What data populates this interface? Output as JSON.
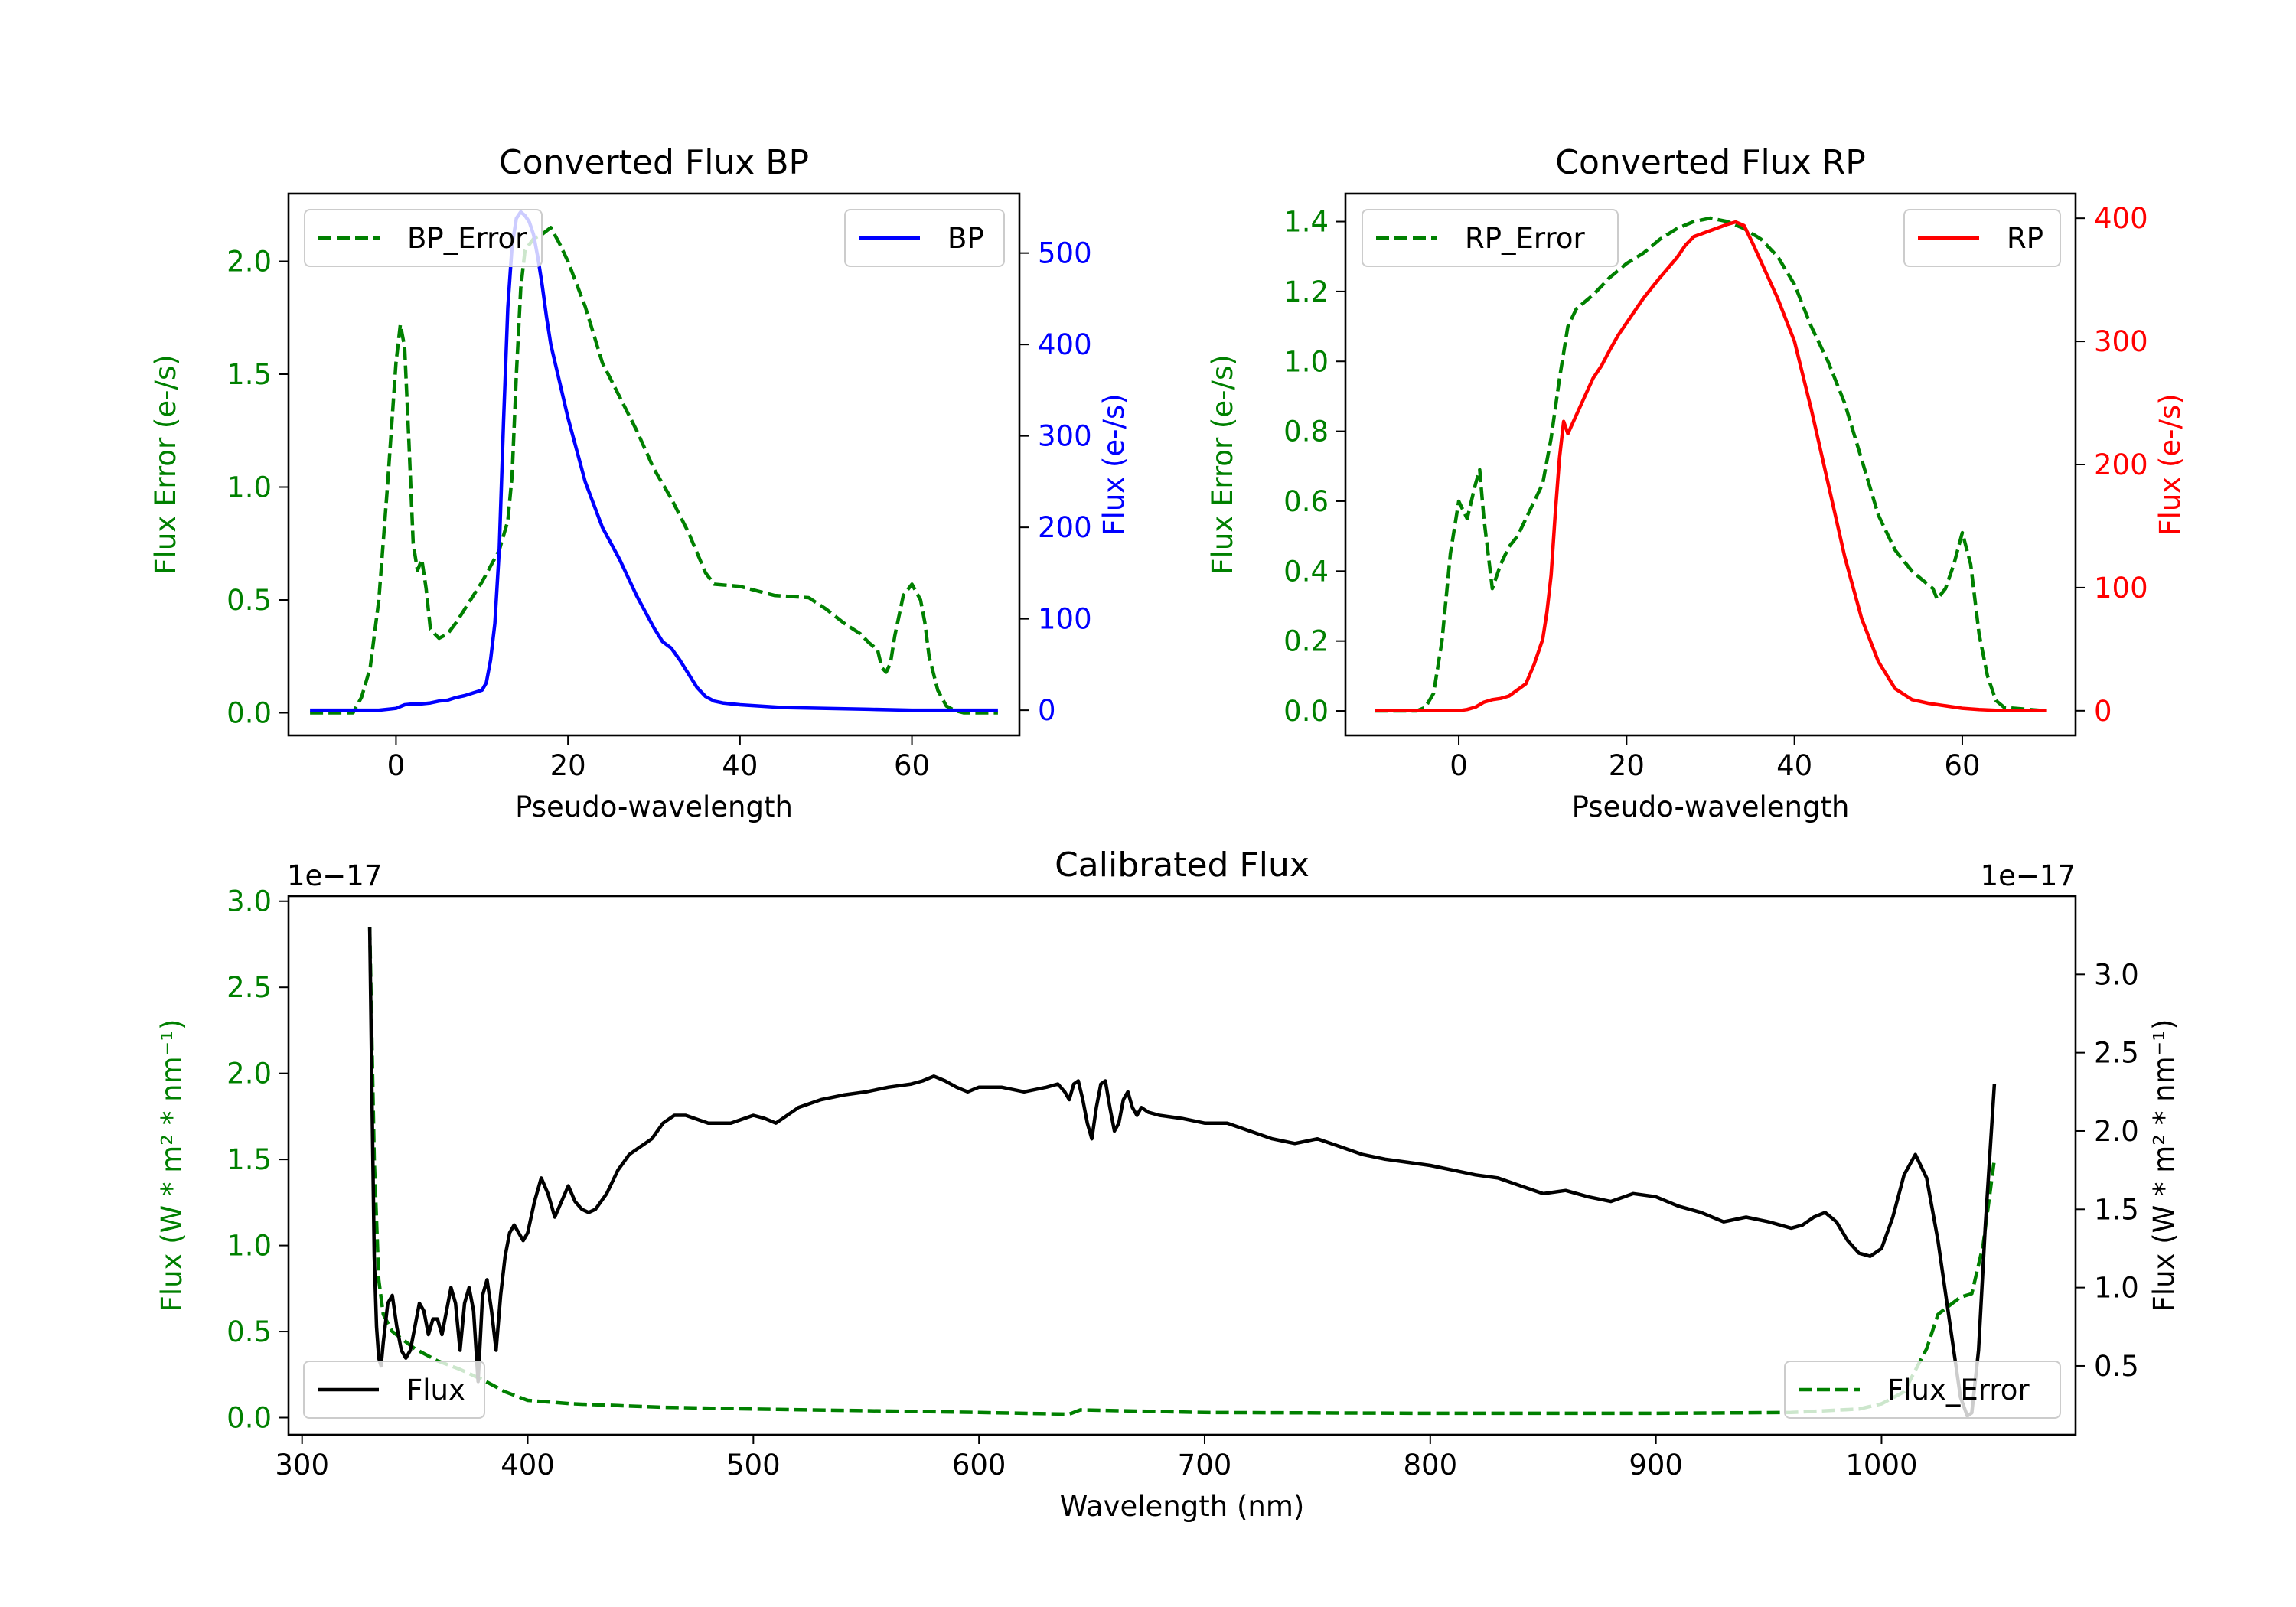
{
  "chart_data": [
    {
      "type": "line",
      "title": "Converted Flux BP",
      "xlabel": "Pseudo-wavelength",
      "ylabel_left": "Flux Error (e-/s)",
      "ylabel_right": "Flux (e-/s)",
      "xlim": [
        -12.5,
        72.5
      ],
      "ylim_left": [
        -0.1,
        2.3
      ],
      "ylim_right": [
        -27.5,
        565
      ],
      "xticks": [
        0,
        20,
        40,
        60
      ],
      "yticks_left": [
        0.0,
        0.5,
        1.0,
        1.5,
        2.0
      ],
      "yticks_right": [
        0,
        100,
        200,
        300,
        400,
        500
      ],
      "legend": [
        {
          "label": "BP_Error",
          "style": "dashed",
          "color": "#008000",
          "placement": "upper left"
        },
        {
          "label": "BP",
          "style": "solid",
          "color": "#0000ff",
          "placement": "upper right"
        }
      ],
      "series": [
        {
          "name": "BP_Error",
          "axis": "left",
          "style": "dashed",
          "color": "#008000",
          "x": [
            -10,
            -5,
            -4,
            -3,
            -2,
            -1,
            0,
            0.5,
            1,
            1.5,
            2,
            2.5,
            3,
            3.5,
            4,
            5,
            6,
            7,
            8,
            9,
            10,
            11,
            12,
            13,
            13.5,
            14,
            14.5,
            15,
            16,
            17,
            18,
            19,
            20,
            22,
            24,
            26,
            28,
            30,
            32,
            34,
            36,
            37,
            40,
            44,
            48,
            50,
            52,
            54,
            55,
            56,
            56.5,
            57,
            57.5,
            58,
            59,
            60,
            61,
            61.5,
            62,
            63,
            64,
            65,
            66,
            70
          ],
          "values": [
            0.0,
            0.0,
            0.07,
            0.2,
            0.5,
            1.0,
            1.55,
            1.72,
            1.62,
            1.2,
            0.75,
            0.63,
            0.68,
            0.55,
            0.37,
            0.33,
            0.35,
            0.4,
            0.46,
            0.52,
            0.58,
            0.65,
            0.72,
            0.85,
            1.05,
            1.5,
            1.88,
            2.05,
            2.1,
            2.12,
            2.15,
            2.08,
            2.0,
            1.8,
            1.55,
            1.4,
            1.25,
            1.08,
            0.95,
            0.8,
            0.62,
            0.57,
            0.56,
            0.52,
            0.51,
            0.46,
            0.4,
            0.35,
            0.31,
            0.28,
            0.2,
            0.18,
            0.22,
            0.34,
            0.52,
            0.57,
            0.5,
            0.4,
            0.25,
            0.1,
            0.03,
            0.01,
            0.0,
            0.0
          ]
        },
        {
          "name": "BP",
          "axis": "right",
          "style": "solid",
          "color": "#0000ff",
          "x": [
            -10,
            -2,
            0,
            1,
            2,
            3,
            4,
            5,
            6,
            7,
            8,
            9,
            10,
            10.5,
            11,
            11.5,
            12,
            12.5,
            13,
            13.5,
            14,
            14.5,
            15,
            15.5,
            16,
            16.5,
            17,
            17.5,
            18,
            19,
            20,
            22,
            24,
            26,
            28,
            30,
            31,
            32,
            33,
            34,
            35,
            36,
            37,
            38,
            40,
            45,
            50,
            55,
            60,
            65,
            70
          ],
          "values": [
            0,
            0,
            2,
            6,
            7,
            7,
            8,
            10,
            11,
            14,
            16,
            19,
            22,
            30,
            55,
            95,
            175,
            315,
            440,
            508,
            538,
            545,
            541,
            534,
            520,
            495,
            465,
            430,
            400,
            360,
            320,
            250,
            200,
            165,
            125,
            90,
            75,
            68,
            55,
            40,
            25,
            15,
            10,
            8,
            6,
            3,
            2,
            1,
            0,
            0,
            0
          ]
        }
      ]
    },
    {
      "type": "line",
      "title": "Converted Flux RP",
      "xlabel": "Pseudo-wavelength",
      "ylabel_left": "Flux Error (e-/s)",
      "ylabel_right": "Flux (e-/s)",
      "xlim": [
        -13.5,
        73.5
      ],
      "ylim_left": [
        -0.07,
        1.48
      ],
      "ylim_right": [
        -20,
        420
      ],
      "xticks": [
        0,
        20,
        40,
        60
      ],
      "yticks_left": [
        0.0,
        0.2,
        0.4,
        0.6,
        0.8,
        1.0,
        1.2,
        1.4
      ],
      "yticks_right": [
        0,
        100,
        200,
        300,
        400
      ],
      "legend": [
        {
          "label": "RP_Error",
          "style": "dashed",
          "color": "#008000",
          "placement": "upper left"
        },
        {
          "label": "RP",
          "style": "solid",
          "color": "#ff0000",
          "placement": "upper right"
        }
      ],
      "series": [
        {
          "name": "RP_Error",
          "axis": "left",
          "style": "dashed",
          "color": "#008000",
          "x": [
            -10,
            -5,
            -4,
            -3,
            -2,
            -1,
            0,
            1,
            2,
            2.5,
            3,
            3.5,
            4,
            5,
            6,
            7,
            8,
            9,
            10,
            11,
            12,
            13,
            14,
            16,
            18,
            20,
            22,
            24,
            26,
            28,
            30,
            32,
            34,
            36,
            38,
            40,
            42,
            44,
            46,
            48,
            50,
            52,
            54,
            55,
            56,
            56.5,
            57,
            58,
            59,
            60,
            61,
            62,
            63,
            64,
            65,
            70
          ],
          "values": [
            0.0,
            0.0,
            0.01,
            0.05,
            0.2,
            0.45,
            0.6,
            0.55,
            0.65,
            0.69,
            0.55,
            0.45,
            0.35,
            0.42,
            0.47,
            0.5,
            0.55,
            0.6,
            0.65,
            0.78,
            0.95,
            1.1,
            1.15,
            1.19,
            1.24,
            1.28,
            1.31,
            1.35,
            1.38,
            1.4,
            1.41,
            1.4,
            1.38,
            1.35,
            1.3,
            1.22,
            1.1,
            1.0,
            0.88,
            0.72,
            0.56,
            0.46,
            0.4,
            0.38,
            0.36,
            0.35,
            0.32,
            0.35,
            0.42,
            0.51,
            0.42,
            0.22,
            0.1,
            0.03,
            0.01,
            0.0
          ]
        },
        {
          "name": "RP",
          "axis": "right",
          "style": "solid",
          "color": "#ff0000",
          "x": [
            -10,
            -2,
            0,
            1,
            2,
            3,
            4,
            5,
            6,
            7,
            8,
            9,
            10,
            10.5,
            11,
            11.5,
            12,
            12.5,
            13,
            14,
            15,
            16,
            17,
            18,
            19,
            20,
            22,
            24,
            26,
            27,
            28,
            30,
            32,
            33,
            34,
            35,
            36,
            38,
            40,
            42,
            44,
            46,
            48,
            50,
            52,
            54,
            56,
            58,
            60,
            62,
            65,
            70
          ],
          "values": [
            0,
            0,
            0,
            1,
            3,
            7,
            9,
            10,
            12,
            17,
            22,
            38,
            58,
            80,
            110,
            160,
            205,
            235,
            225,
            240,
            255,
            270,
            280,
            293,
            305,
            315,
            335,
            352,
            368,
            378,
            385,
            390,
            395,
            397,
            394,
            380,
            365,
            335,
            300,
            245,
            185,
            125,
            75,
            40,
            18,
            9,
            6,
            4,
            2,
            1,
            0,
            0
          ]
        }
      ]
    },
    {
      "type": "line",
      "title": "Calibrated Flux",
      "xlabel": "Wavelength (nm)",
      "ylabel_left": "Flux (W * m² * nm⁻¹)",
      "ylabel_right": "Flux (W * m² * nm⁻¹)",
      "offset_left": "1e−17",
      "offset_right": "1e−17",
      "xlim": [
        294,
        1086
      ],
      "ylim_left": [
        -0.1,
        3.03
      ],
      "ylim_right": [
        0.06,
        3.5
      ],
      "xticks": [
        300,
        400,
        500,
        600,
        700,
        800,
        900,
        1000
      ],
      "yticks_left": [
        0.0,
        0.5,
        1.0,
        1.5,
        2.0,
        2.5,
        3.0
      ],
      "yticks_right": [
        0.5,
        1.0,
        1.5,
        2.0,
        2.5,
        3.0
      ],
      "legend": [
        {
          "label": "Flux",
          "style": "solid",
          "color": "#000000",
          "placement": "lower left"
        },
        {
          "label": "Flux_Error",
          "style": "dashed",
          "color": "#008000",
          "placement": "lower right"
        }
      ],
      "series": [
        {
          "name": "Flux_Error",
          "axis": "left",
          "style": "dashed",
          "color": "#008000",
          "x": [
            330,
            332,
            334,
            336,
            340,
            345,
            350,
            360,
            370,
            380,
            390,
            400,
            420,
            440,
            460,
            500,
            550,
            600,
            640,
            645,
            700,
            800,
            900,
            960,
            990,
            1000,
            1010,
            1020,
            1025,
            1030,
            1035,
            1040,
            1045,
            1050
          ],
          "values": [
            2.85,
            1.5,
            0.8,
            0.6,
            0.5,
            0.45,
            0.4,
            0.33,
            0.28,
            0.22,
            0.15,
            0.1,
            0.08,
            0.07,
            0.06,
            0.05,
            0.04,
            0.03,
            0.02,
            0.045,
            0.03,
            0.025,
            0.025,
            0.03,
            0.05,
            0.08,
            0.15,
            0.4,
            0.6,
            0.65,
            0.7,
            0.72,
            1.0,
            1.5
          ]
        },
        {
          "name": "Flux",
          "axis": "right",
          "style": "solid",
          "color": "#000000",
          "x": [
            330,
            331,
            332,
            333,
            334,
            335,
            336,
            338,
            340,
            342,
            344,
            346,
            348,
            350,
            352,
            354,
            356,
            358,
            360,
            362,
            364,
            366,
            368,
            370,
            372,
            374,
            376,
            378,
            380,
            382,
            384,
            386,
            388,
            390,
            392,
            394,
            396,
            398,
            400,
            403,
            406,
            409,
            412,
            415,
            418,
            421,
            424,
            427,
            430,
            435,
            440,
            445,
            450,
            455,
            460,
            465,
            470,
            480,
            490,
            500,
            505,
            510,
            515,
            520,
            530,
            540,
            550,
            560,
            570,
            575,
            580,
            585,
            590,
            595,
            600,
            610,
            620,
            630,
            635,
            638,
            640,
            642,
            644,
            646,
            648,
            650,
            652,
            654,
            656,
            658,
            660,
            662,
            664,
            666,
            668,
            670,
            672,
            675,
            680,
            690,
            700,
            710,
            720,
            730,
            740,
            750,
            760,
            770,
            780,
            790,
            800,
            810,
            820,
            830,
            840,
            850,
            860,
            870,
            880,
            890,
            900,
            910,
            920,
            930,
            940,
            950,
            960,
            965,
            970,
            975,
            980,
            985,
            990,
            995,
            1000,
            1005,
            1010,
            1015,
            1020,
            1025,
            1030,
            1035,
            1038,
            1040,
            1043,
            1046,
            1050
          ],
          "values": [
            3.3,
            2.2,
            1.2,
            0.75,
            0.55,
            0.5,
            0.65,
            0.9,
            0.95,
            0.75,
            0.6,
            0.55,
            0.6,
            0.75,
            0.9,
            0.85,
            0.7,
            0.8,
            0.8,
            0.7,
            0.85,
            1.0,
            0.9,
            0.6,
            0.9,
            1.0,
            0.85,
            0.4,
            0.95,
            1.05,
            0.85,
            0.6,
            0.95,
            1.2,
            1.35,
            1.4,
            1.35,
            1.3,
            1.35,
            1.55,
            1.7,
            1.6,
            1.45,
            1.55,
            1.65,
            1.55,
            1.5,
            1.48,
            1.5,
            1.6,
            1.75,
            1.85,
            1.9,
            1.95,
            2.05,
            2.1,
            2.1,
            2.05,
            2.05,
            2.1,
            2.08,
            2.05,
            2.1,
            2.15,
            2.2,
            2.23,
            2.25,
            2.28,
            2.3,
            2.32,
            2.35,
            2.32,
            2.28,
            2.25,
            2.28,
            2.28,
            2.25,
            2.28,
            2.3,
            2.25,
            2.2,
            2.3,
            2.32,
            2.2,
            2.05,
            1.95,
            2.15,
            2.3,
            2.32,
            2.15,
            2.0,
            2.05,
            2.2,
            2.25,
            2.15,
            2.1,
            2.15,
            2.12,
            2.1,
            2.08,
            2.05,
            2.05,
            2.0,
            1.95,
            1.92,
            1.95,
            1.9,
            1.85,
            1.82,
            1.8,
            1.78,
            1.75,
            1.72,
            1.7,
            1.65,
            1.6,
            1.62,
            1.58,
            1.55,
            1.6,
            1.58,
            1.52,
            1.48,
            1.42,
            1.45,
            1.42,
            1.38,
            1.4,
            1.45,
            1.48,
            1.42,
            1.3,
            1.22,
            1.2,
            1.25,
            1.45,
            1.72,
            1.85,
            1.7,
            1.3,
            0.8,
            0.3,
            0.18,
            0.2,
            0.6,
            1.4,
            2.3
          ]
        }
      ]
    }
  ]
}
